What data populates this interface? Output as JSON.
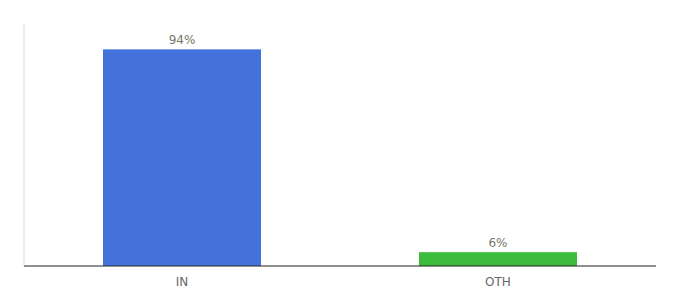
{
  "chart_data": {
    "type": "bar",
    "categories": [
      "IN",
      "OTH"
    ],
    "values": [
      94,
      6
    ],
    "value_labels": [
      "94%",
      "6%"
    ],
    "colors": [
      "#4472db",
      "#3dbb3d"
    ],
    "ylim": [
      0,
      105
    ],
    "data_labels": true,
    "tick_labels": "x"
  }
}
